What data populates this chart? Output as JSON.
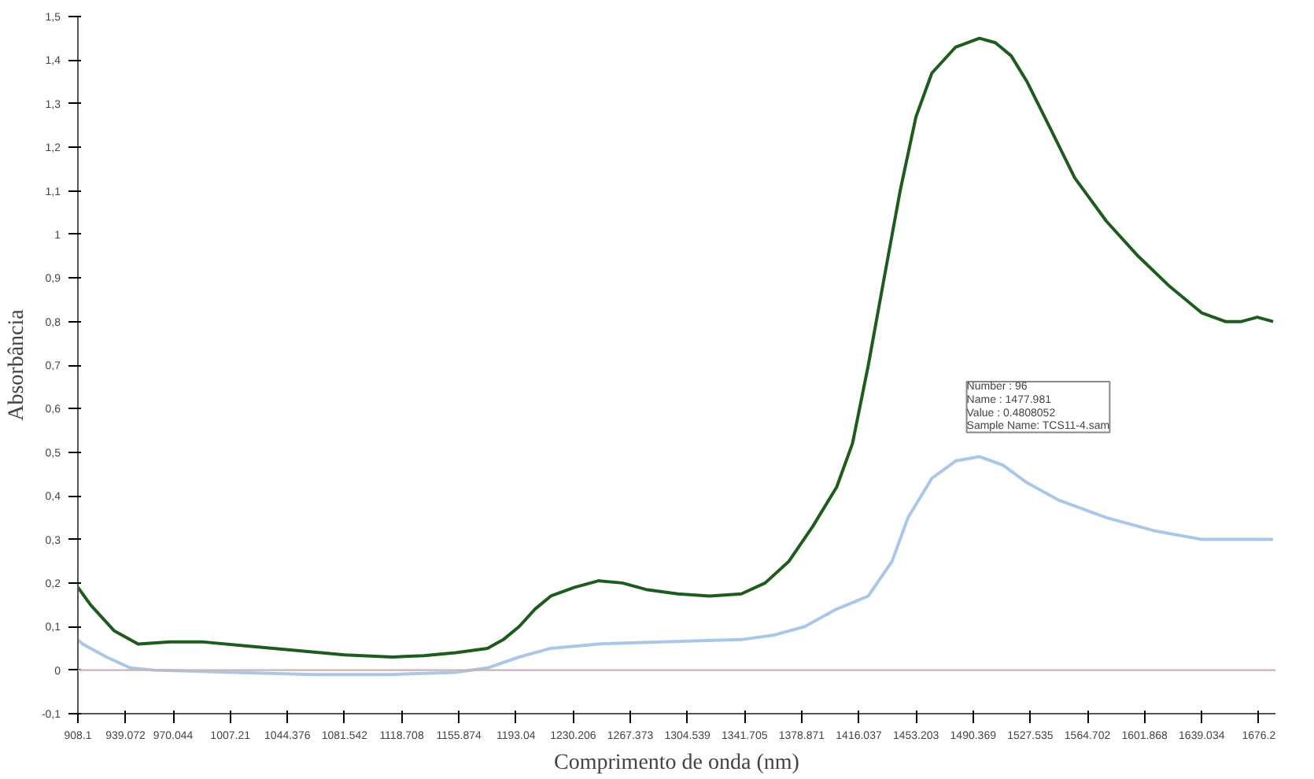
{
  "chart_data": {
    "type": "line",
    "xlabel": "Comprimento de onda (nm)",
    "ylabel": "Absorbância",
    "xlim": [
      908.1,
      1687
    ],
    "ylim": [
      -0.1,
      1.5
    ],
    "xticks": [
      908.1,
      939.072,
      970.044,
      1007.21,
      1044.376,
      1081.542,
      1118.708,
      1155.874,
      1193.04,
      1230.206,
      1267.373,
      1304.539,
      1341.705,
      1378.871,
      1416.037,
      1453.203,
      1490.369,
      1527.535,
      1564.702,
      1601.868,
      1639.034,
      1676.2
    ],
    "yticks": [
      {
        "value": -0.1,
        "label": "-0,1"
      },
      0,
      {
        "value": 0.1,
        "label": "0,1"
      },
      {
        "value": 0.2,
        "label": "0,2"
      },
      {
        "value": 0.3,
        "label": "0,3"
      },
      {
        "value": 0.4,
        "label": "0,4"
      },
      {
        "value": 0.5,
        "label": "0,5"
      },
      {
        "value": 0.6,
        "label": "0,6"
      },
      {
        "value": 0.7,
        "label": "0,7"
      },
      {
        "value": 0.8,
        "label": "0,8"
      },
      {
        "value": 0.9,
        "label": "0,9"
      },
      1,
      {
        "value": 1.1,
        "label": "1,1"
      },
      {
        "value": 1.2,
        "label": "1,2"
      },
      {
        "value": 1.3,
        "label": "1,3"
      },
      {
        "value": 1.4,
        "label": "1,4"
      },
      {
        "value": 1.5,
        "label": "1,5"
      }
    ],
    "grid": false,
    "line_style": "solid",
    "marker": "none",
    "ref_lines": [
      {
        "axis": "y",
        "value": 0,
        "label": null,
        "color": "#c9b3b3"
      }
    ],
    "series": [
      {
        "color": "#1e5c1e",
        "x": [
          908.1,
          916.3,
          931.8,
          947.3,
          968.0,
          988.6,
          1019.6,
          1050.6,
          1081.5,
          1112.5,
          1133.2,
          1153.8,
          1174.5,
          1184.8,
          1195.1,
          1205.4,
          1215.7,
          1231.2,
          1246.7,
          1262.2,
          1277.7,
          1298.3,
          1319.0,
          1339.6,
          1355.1,
          1370.6,
          1386.1,
          1401.6,
          1411.9,
          1422.2,
          1432.5,
          1442.9,
          1453.2,
          1463.5,
          1479.0,
          1494.5,
          1504.8,
          1515.1,
          1525.5,
          1541.0,
          1556.4,
          1577.1,
          1597.7,
          1618.4,
          1639.0,
          1654.5,
          1664.8,
          1675.2,
          1685.5
        ],
        "values": [
          0.19,
          0.15,
          0.09,
          0.06,
          0.065,
          0.065,
          0.055,
          0.045,
          0.035,
          0.03,
          0.033,
          0.04,
          0.05,
          0.07,
          0.1,
          0.14,
          0.17,
          0.19,
          0.205,
          0.2,
          0.185,
          0.175,
          0.17,
          0.175,
          0.2,
          0.25,
          0.33,
          0.42,
          0.52,
          0.7,
          0.9,
          1.1,
          1.27,
          1.37,
          1.43,
          1.45,
          1.44,
          1.41,
          1.35,
          1.24,
          1.13,
          1.03,
          0.95,
          0.88,
          0.82,
          0.8,
          0.8,
          0.81,
          0.8
        ]
      },
      {
        "color": "#a9c8e8",
        "x": [
          908.1,
          911.2,
          926.7,
          942.2,
          957.6,
          1009.3,
          1060.9,
          1112.5,
          1153.8,
          1174.5,
          1195.1,
          1215.7,
          1246.7,
          1288.0,
          1339.6,
          1360.3,
          1380.9,
          1401.6,
          1422.2,
          1437.7,
          1448.0,
          1463.5,
          1479.0,
          1494.5,
          1510.0,
          1525.5,
          1546.1,
          1577.1,
          1608.0,
          1639.0,
          1670.0,
          1685.5
        ],
        "values": [
          0.07,
          0.06,
          0.03,
          0.005,
          0,
          -0.005,
          -0.01,
          -0.01,
          -0.005,
          0.005,
          0.03,
          0.05,
          0.06,
          0.065,
          0.07,
          0.08,
          0.1,
          0.14,
          0.17,
          0.25,
          0.35,
          0.44,
          0.48,
          0.49,
          0.47,
          0.43,
          0.39,
          0.35,
          0.32,
          0.3,
          0.3,
          0.3
        ]
      }
    ],
    "annotations": [
      {
        "text": "Number       : 96\nName          : 1477.981\nValue          : 0.4808052\nSample Name: TCS11-4.sam",
        "x": 1477.981,
        "y": 0.4808052
      }
    ]
  }
}
